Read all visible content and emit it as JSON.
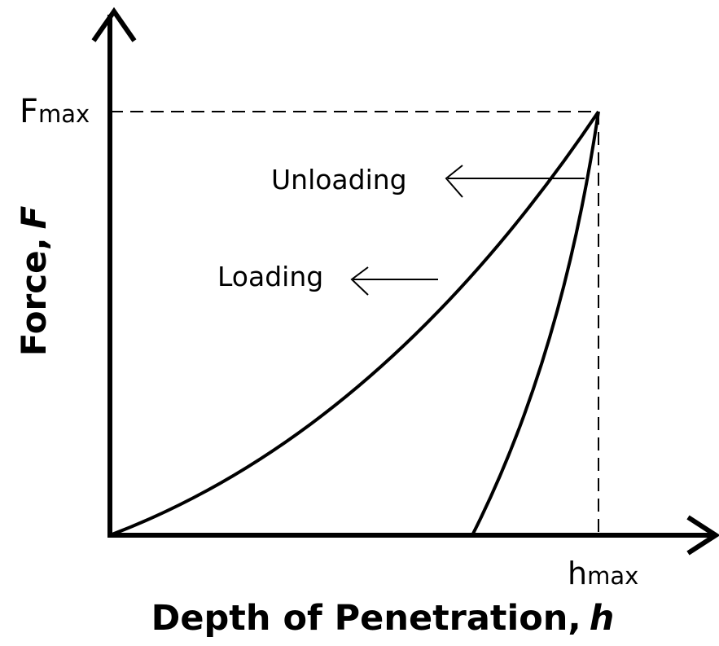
{
  "axes": {
    "y_label": "Force,",
    "y_label_var": "F",
    "x_label": "Depth of Penetration,",
    "x_label_var": "h"
  },
  "markers": {
    "f_max": {
      "symbol": "F",
      "subscript": "max"
    },
    "h_max": {
      "symbol": "h",
      "subscript": "max"
    }
  },
  "curves": [
    {
      "label": "Loading"
    },
    {
      "label": "Unloading"
    }
  ]
}
